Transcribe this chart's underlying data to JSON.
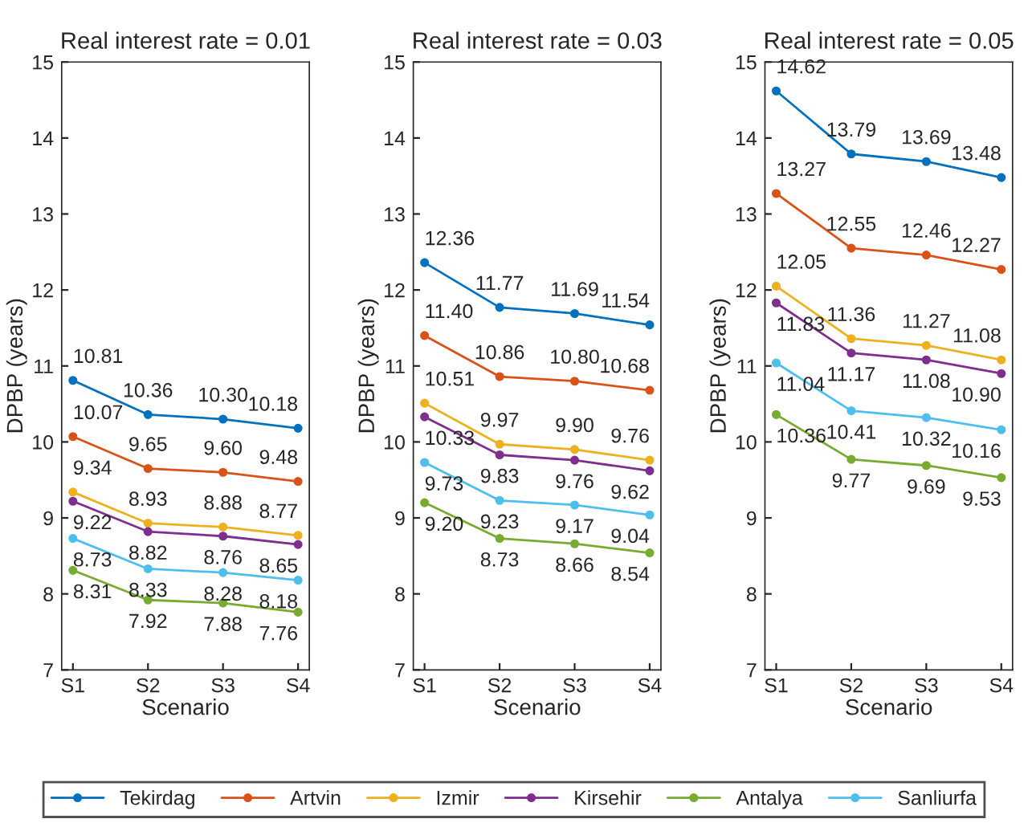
{
  "chart_data": [
    {
      "type": "line",
      "title": "Real interest rate = 0.01",
      "xlabel": "Scenario",
      "ylabel": "DPBP (years)",
      "categories": [
        "S1",
        "S2",
        "S3",
        "S4"
      ],
      "ylim": [
        7,
        15
      ],
      "yticks": [
        7,
        8,
        9,
        10,
        11,
        12,
        13,
        14,
        15
      ],
      "marker": "circle",
      "legend": "bottom",
      "grid": false,
      "series": [
        {
          "name": "Tekirdag",
          "color": "#0072bd",
          "values": [
            10.81,
            10.36,
            10.3,
            10.18
          ],
          "value_labels": [
            "10.81",
            "10.36",
            "10.30",
            "10.18"
          ]
        },
        {
          "name": "Artvin",
          "color": "#d95319",
          "values": [
            10.07,
            9.65,
            9.6,
            9.48
          ],
          "value_labels": [
            "10.07",
            "9.65",
            "9.60",
            "9.48"
          ]
        },
        {
          "name": "Izmir",
          "color": "#edb120",
          "values": [
            9.34,
            8.93,
            8.88,
            8.77
          ],
          "value_labels": [
            "9.34",
            "8.93",
            "8.88",
            "8.77"
          ]
        },
        {
          "name": "Kirsehir",
          "color": "#7e2f8e",
          "values": [
            9.22,
            8.82,
            8.76,
            8.65
          ],
          "value_labels": [
            "9.22",
            "8.82",
            "8.76",
            "8.65"
          ]
        },
        {
          "name": "Antalya",
          "color": "#77ac30",
          "values": [
            8.31,
            7.92,
            7.88,
            7.76
          ],
          "value_labels": [
            "8.31",
            "7.92",
            "7.88",
            "7.76"
          ]
        },
        {
          "name": "Sanliurfa",
          "color": "#4dbeee",
          "values": [
            8.73,
            8.33,
            8.28,
            8.18
          ],
          "value_labels": [
            "8.73",
            "8.33",
            "8.28",
            "8.18"
          ]
        }
      ]
    },
    {
      "type": "line",
      "title": "Real interest rate = 0.03",
      "xlabel": "Scenario",
      "ylabel": "DPBP (years)",
      "categories": [
        "S1",
        "S2",
        "S3",
        "S4"
      ],
      "ylim": [
        7,
        15
      ],
      "yticks": [
        7,
        8,
        9,
        10,
        11,
        12,
        13,
        14,
        15
      ],
      "marker": "circle",
      "grid": false,
      "series": [
        {
          "color": "#0072bd",
          "values": [
            12.36,
            11.77,
            11.69,
            11.54
          ],
          "value_labels": [
            "12.36",
            "11.77",
            "11.69",
            "11.54"
          ]
        },
        {
          "color": "#d95319",
          "values": [
            11.4,
            10.86,
            10.8,
            10.68
          ],
          "value_labels": [
            "11.40",
            "10.86",
            "10.80",
            "10.68"
          ]
        },
        {
          "color": "#edb120",
          "values": [
            10.51,
            9.97,
            9.9,
            9.76
          ],
          "value_labels": [
            "10.51",
            "9.97",
            "9.90",
            "9.76"
          ]
        },
        {
          "color": "#7e2f8e",
          "values": [
            10.33,
            9.83,
            9.76,
            9.62
          ],
          "value_labels": [
            "10.33",
            "9.83",
            "9.76",
            "9.62"
          ]
        },
        {
          "color": "#77ac30",
          "values": [
            9.2,
            8.73,
            8.66,
            8.54
          ],
          "value_labels": [
            "9.20",
            "8.73",
            "8.66",
            "8.54"
          ]
        },
        {
          "color": "#4dbeee",
          "values": [
            9.73,
            9.23,
            9.17,
            9.04
          ],
          "value_labels": [
            "9.73",
            "9.23",
            "9.17",
            "9.04"
          ]
        }
      ]
    },
    {
      "type": "line",
      "title": "Real interest rate = 0.05",
      "xlabel": "Scenario",
      "ylabel": "DPBP (years)",
      "categories": [
        "S1",
        "S2",
        "S3",
        "S4"
      ],
      "ylim": [
        7,
        15
      ],
      "yticks": [
        7,
        8,
        9,
        10,
        11,
        12,
        13,
        14,
        15
      ],
      "marker": "circle",
      "grid": false,
      "series": [
        {
          "color": "#0072bd",
          "values": [
            14.62,
            13.79,
            13.69,
            13.48
          ],
          "value_labels": [
            "14.62",
            "13.79",
            "13.69",
            "13.48"
          ]
        },
        {
          "color": "#d95319",
          "values": [
            13.27,
            12.55,
            12.46,
            12.27
          ],
          "value_labels": [
            "13.27",
            "12.55",
            "12.46",
            "12.27"
          ]
        },
        {
          "color": "#edb120",
          "values": [
            12.05,
            11.36,
            11.27,
            11.08
          ],
          "value_labels": [
            "12.05",
            "11.36",
            "11.27",
            "11.08"
          ]
        },
        {
          "color": "#7e2f8e",
          "values": [
            11.83,
            11.17,
            11.08,
            10.9
          ],
          "value_labels": [
            "11.83",
            "11.17",
            "11.08",
            "10.90"
          ]
        },
        {
          "color": "#77ac30",
          "values": [
            10.36,
            9.77,
            9.69,
            9.53
          ],
          "value_labels": [
            "10.36",
            "9.77",
            "9.69",
            "9.53"
          ]
        },
        {
          "color": "#4dbeee",
          "values": [
            11.04,
            10.41,
            10.32,
            10.16
          ],
          "value_labels": [
            "11.04",
            "10.41",
            "10.32",
            "10.16"
          ]
        }
      ]
    }
  ]
}
